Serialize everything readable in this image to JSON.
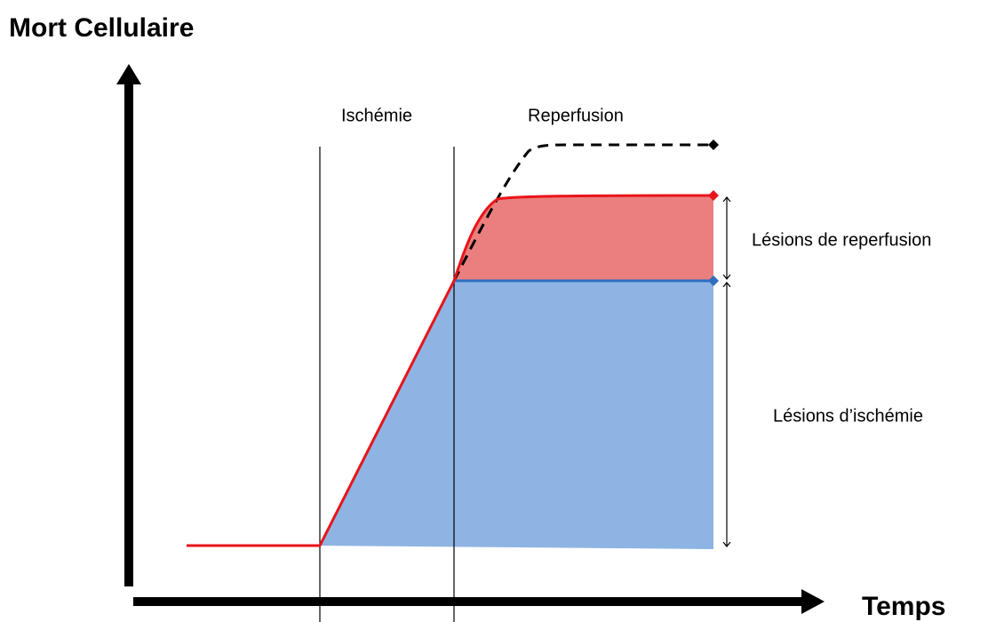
{
  "y_axis_label": "Mort Cellulaire",
  "x_axis_label": "Temps",
  "phases": [
    "Ischémie",
    "Reperfusion"
  ],
  "annotations": [
    "Lésions de reperfusion",
    "Lésions d’ischémie"
  ]
}
